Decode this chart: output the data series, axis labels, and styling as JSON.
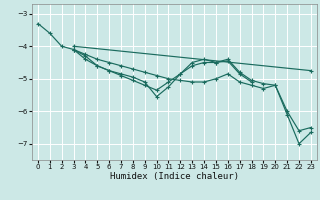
{
  "xlabel": "Humidex (Indice chaleur)",
  "bg_color": "#cce8e6",
  "line_color": "#1a6b5e",
  "grid_color": "#ffffff",
  "xlim": [
    -0.5,
    23.5
  ],
  "ylim": [
    -7.5,
    -2.7
  ],
  "yticks": [
    -7,
    -6,
    -5,
    -4,
    -3
  ],
  "xticks": [
    0,
    1,
    2,
    3,
    4,
    5,
    6,
    7,
    8,
    9,
    10,
    11,
    12,
    13,
    14,
    15,
    16,
    17,
    18,
    19,
    20,
    21,
    22,
    23
  ],
  "lines": [
    {
      "x": [
        0,
        1,
        2,
        3,
        4,
        5,
        6,
        7,
        8,
        9,
        10,
        11,
        12,
        13,
        14,
        15,
        16,
        17,
        18,
        19,
        20,
        21,
        22,
        23
      ],
      "y": [
        -3.3,
        -3.6,
        -4.0,
        -4.1,
        -4.25,
        -4.4,
        -4.5,
        -4.6,
        -4.7,
        -4.8,
        -4.9,
        -5.0,
        -5.05,
        -5.1,
        -5.1,
        -5.0,
        -4.85,
        -5.1,
        -5.2,
        -5.3,
        -5.2,
        -6.0,
        -6.6,
        -6.5
      ]
    },
    {
      "x": [
        3,
        4,
        5,
        6,
        7,
        8,
        9,
        10,
        11,
        12,
        13,
        14,
        15,
        16,
        17,
        18,
        19,
        20,
        21,
        22,
        23
      ],
      "y": [
        -4.1,
        -4.3,
        -4.6,
        -4.75,
        -4.85,
        -4.95,
        -5.1,
        -5.55,
        -5.25,
        -4.85,
        -4.5,
        -4.4,
        -4.5,
        -4.4,
        -4.8,
        -5.05,
        -5.15,
        -5.2,
        -6.1,
        -7.0,
        -6.65
      ]
    },
    {
      "x": [
        3,
        4,
        5,
        6,
        7,
        8,
        9,
        10,
        11,
        12,
        13,
        14,
        15,
        16,
        17,
        18
      ],
      "y": [
        -4.1,
        -4.4,
        -4.6,
        -4.75,
        -4.9,
        -5.05,
        -5.2,
        -5.35,
        -5.1,
        -4.85,
        -4.6,
        -4.5,
        -4.5,
        -4.45,
        -4.85,
        -5.1
      ]
    },
    {
      "x": [
        3,
        23
      ],
      "y": [
        -4.0,
        -4.75
      ]
    }
  ]
}
